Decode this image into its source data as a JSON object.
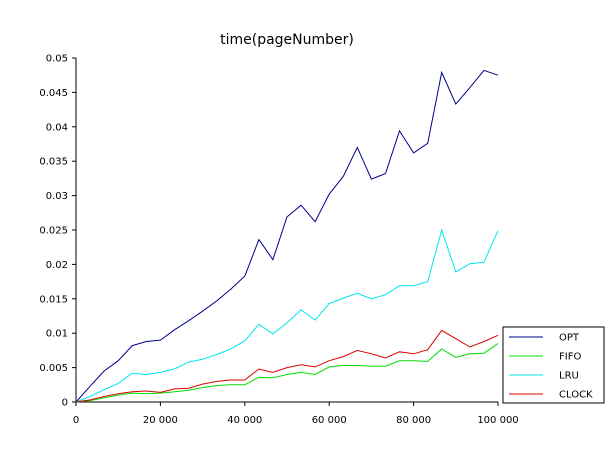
{
  "chart_data": {
    "type": "line",
    "title": "time(pageNumber)",
    "xlabel": "",
    "ylabel": "",
    "xlim": [
      0,
      100000
    ],
    "ylim": [
      0,
      0.05
    ],
    "xticks": [
      0,
      20000,
      40000,
      60000,
      80000,
      100000
    ],
    "xtick_labels": [
      "0",
      "20 000",
      "40 000",
      "60 000",
      "80 000",
      "100 000"
    ],
    "yticks": [
      0,
      0.005,
      0.01,
      0.015,
      0.02,
      0.025,
      0.03,
      0.035,
      0.04,
      0.045,
      0.05
    ],
    "ytick_labels": [
      "0",
      "0.005",
      "0.01",
      "0.015",
      "0.02",
      "0.025",
      "0.03",
      "0.035",
      "0.04",
      "0.045",
      "0.05"
    ],
    "grid": false,
    "legend_position": "bottom-right",
    "x": [
      0,
      3333,
      6667,
      10000,
      13333,
      16667,
      20000,
      23333,
      26667,
      30000,
      33333,
      36667,
      40000,
      43333,
      46667,
      50000,
      53333,
      56667,
      60000,
      63333,
      66667,
      70000,
      73333,
      76667,
      80000,
      83333,
      86667,
      90000,
      93333,
      96667,
      100000
    ],
    "series": [
      {
        "name": "OPT",
        "color": "#00008b",
        "values": [
          0,
          0.0023,
          0.0045,
          0.006,
          0.0082,
          0.0088,
          0.009,
          0.0105,
          0.0118,
          0.0132,
          0.0147,
          0.0164,
          0.0183,
          0.0236,
          0.0207,
          0.0269,
          0.0286,
          0.0262,
          0.0302,
          0.0328,
          0.037,
          0.0324,
          0.0332,
          0.0394,
          0.0362,
          0.0376,
          0.0479,
          0.0433,
          0.0457,
          0.0482,
          0.0475
        ]
      },
      {
        "name": "FIFO",
        "color": "#00dd00",
        "values": [
          0,
          0.0002,
          0.0006,
          0.001,
          0.0013,
          0.0012,
          0.0013,
          0.0015,
          0.0017,
          0.0021,
          0.0024,
          0.0025,
          0.0025,
          0.0036,
          0.0035,
          0.004,
          0.0043,
          0.004,
          0.0051,
          0.0053,
          0.0053,
          0.0052,
          0.0052,
          0.006,
          0.006,
          0.0059,
          0.0077,
          0.0065,
          0.007,
          0.0071,
          0.0085
        ]
      },
      {
        "name": "LRU",
        "color": "#00e5ee",
        "values": [
          0,
          0.0008,
          0.0018,
          0.0027,
          0.0042,
          0.004,
          0.0043,
          0.0048,
          0.0058,
          0.0062,
          0.0069,
          0.0077,
          0.0089,
          0.0113,
          0.0099,
          0.0115,
          0.0134,
          0.0119,
          0.0143,
          0.0151,
          0.0158,
          0.015,
          0.0156,
          0.0169,
          0.0169,
          0.0175,
          0.025,
          0.0189,
          0.0201,
          0.0203,
          0.0249
        ]
      },
      {
        "name": "CLOCK",
        "color": "#dd0000",
        "values": [
          0,
          0.0003,
          0.0008,
          0.0012,
          0.0015,
          0.0016,
          0.0014,
          0.0019,
          0.002,
          0.0026,
          0.003,
          0.0032,
          0.0032,
          0.0048,
          0.0043,
          0.005,
          0.0054,
          0.0051,
          0.006,
          0.0066,
          0.0075,
          0.007,
          0.0064,
          0.0073,
          0.007,
          0.0076,
          0.0104,
          0.0092,
          0.008,
          0.0088,
          0.0097
        ]
      }
    ]
  }
}
